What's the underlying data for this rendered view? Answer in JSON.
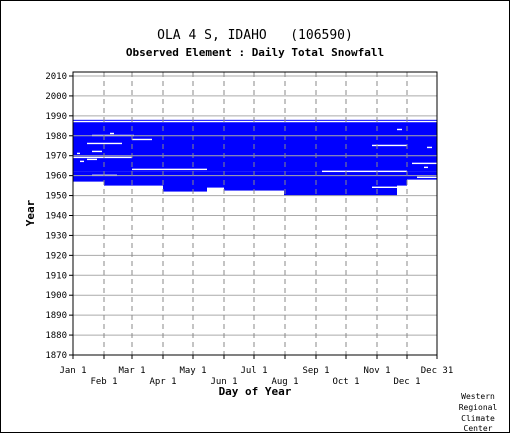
{
  "chart_data": {
    "type": "heatmap",
    "title": "OLA 4 S, IDAHO   (106590)",
    "subtitle": "Observed Element : Daily Total Snowfall",
    "xlabel": "Day of Year",
    "ylabel": "Year",
    "x_ticks_upper": [
      "Jan 1",
      "Mar 1",
      "May 1",
      "Jul 1",
      "Sep 1",
      "Nov 1",
      "Dec 31"
    ],
    "x_ticks_lower": [
      "Feb 1",
      "Apr 1",
      "Jun 1",
      "Aug 1",
      "Oct 1",
      "Dec 1"
    ],
    "x_tick_days_upper": [
      1,
      60,
      121,
      182,
      244,
      305,
      365
    ],
    "x_tick_days_lower": [
      32,
      91,
      152,
      213,
      274,
      335
    ],
    "xlim": [
      1,
      365
    ],
    "y_ticks": [
      2010,
      2000,
      1990,
      1980,
      1970,
      1960,
      1950,
      1940,
      1930,
      1920,
      1910,
      1900,
      1890,
      1880,
      1870
    ],
    "ylim": [
      1870,
      2012
    ],
    "grid": true,
    "data_color": "#0000ff",
    "coverage": [
      {
        "year_start": 1962,
        "year_end": 1988,
        "day_start": 1,
        "day_end": 365
      },
      {
        "year_start": 1957,
        "year_end": 1962,
        "day_start": 1,
        "day_end": 32
      },
      {
        "year_start": 1955,
        "year_end": 1962,
        "day_start": 32,
        "day_end": 91
      },
      {
        "year_start": 1952,
        "year_end": 1962,
        "day_start": 91,
        "day_end": 135
      },
      {
        "year_start": 1954,
        "year_end": 1962,
        "day_start": 135,
        "day_end": 152
      },
      {
        "year_start": 1952,
        "year_end": 1962,
        "day_start": 152,
        "day_end": 212
      },
      {
        "year_start": 1950,
        "year_end": 1962,
        "day_start": 212,
        "day_end": 325
      },
      {
        "year_start": 1955,
        "year_end": 1962,
        "day_start": 325,
        "day_end": 335
      },
      {
        "year_start": 1958,
        "year_end": 1962,
        "day_start": 335,
        "day_end": 365
      }
    ],
    "gaps": [
      {
        "year": 1987,
        "day_start": 1,
        "day_end": 365
      },
      {
        "year": 1980,
        "day_start": 20,
        "day_end": 62
      },
      {
        "year": 1978,
        "day_start": 60,
        "day_end": 80
      },
      {
        "year": 1976,
        "day_start": 15,
        "day_end": 50
      },
      {
        "year": 1975,
        "day_start": 300,
        "day_end": 335
      },
      {
        "year": 1972,
        "day_start": 20,
        "day_end": 30
      },
      {
        "year": 1969,
        "day_start": 1,
        "day_end": 60
      },
      {
        "year": 1968,
        "day_start": 15,
        "day_end": 25
      },
      {
        "year": 1966,
        "day_start": 340,
        "day_end": 365
      },
      {
        "year": 1963,
        "day_start": 60,
        "day_end": 135
      },
      {
        "year": 1962,
        "day_start": 250,
        "day_end": 335
      },
      {
        "year": 1960,
        "day_start": 20,
        "day_end": 45
      },
      {
        "year": 1959,
        "day_start": 345,
        "day_end": 365
      },
      {
        "year": 1954,
        "day_start": 300,
        "day_end": 325
      },
      {
        "year": 1952,
        "day_start": 135,
        "day_end": 212
      },
      {
        "year": 1951,
        "day_start": 91,
        "day_end": 212
      },
      {
        "year": 1983,
        "day_start": 325,
        "day_end": 330
      },
      {
        "year": 1981,
        "day_start": 38,
        "day_end": 42
      },
      {
        "year": 1974,
        "day_start": 355,
        "day_end": 360
      },
      {
        "year": 1971,
        "day_start": 5,
        "day_end": 8
      },
      {
        "year": 1967,
        "day_start": 8,
        "day_end": 12
      },
      {
        "year": 1964,
        "day_start": 352,
        "day_end": 356
      }
    ]
  },
  "credit": [
    "Western",
    "Regional",
    "Climate",
    "Center"
  ]
}
